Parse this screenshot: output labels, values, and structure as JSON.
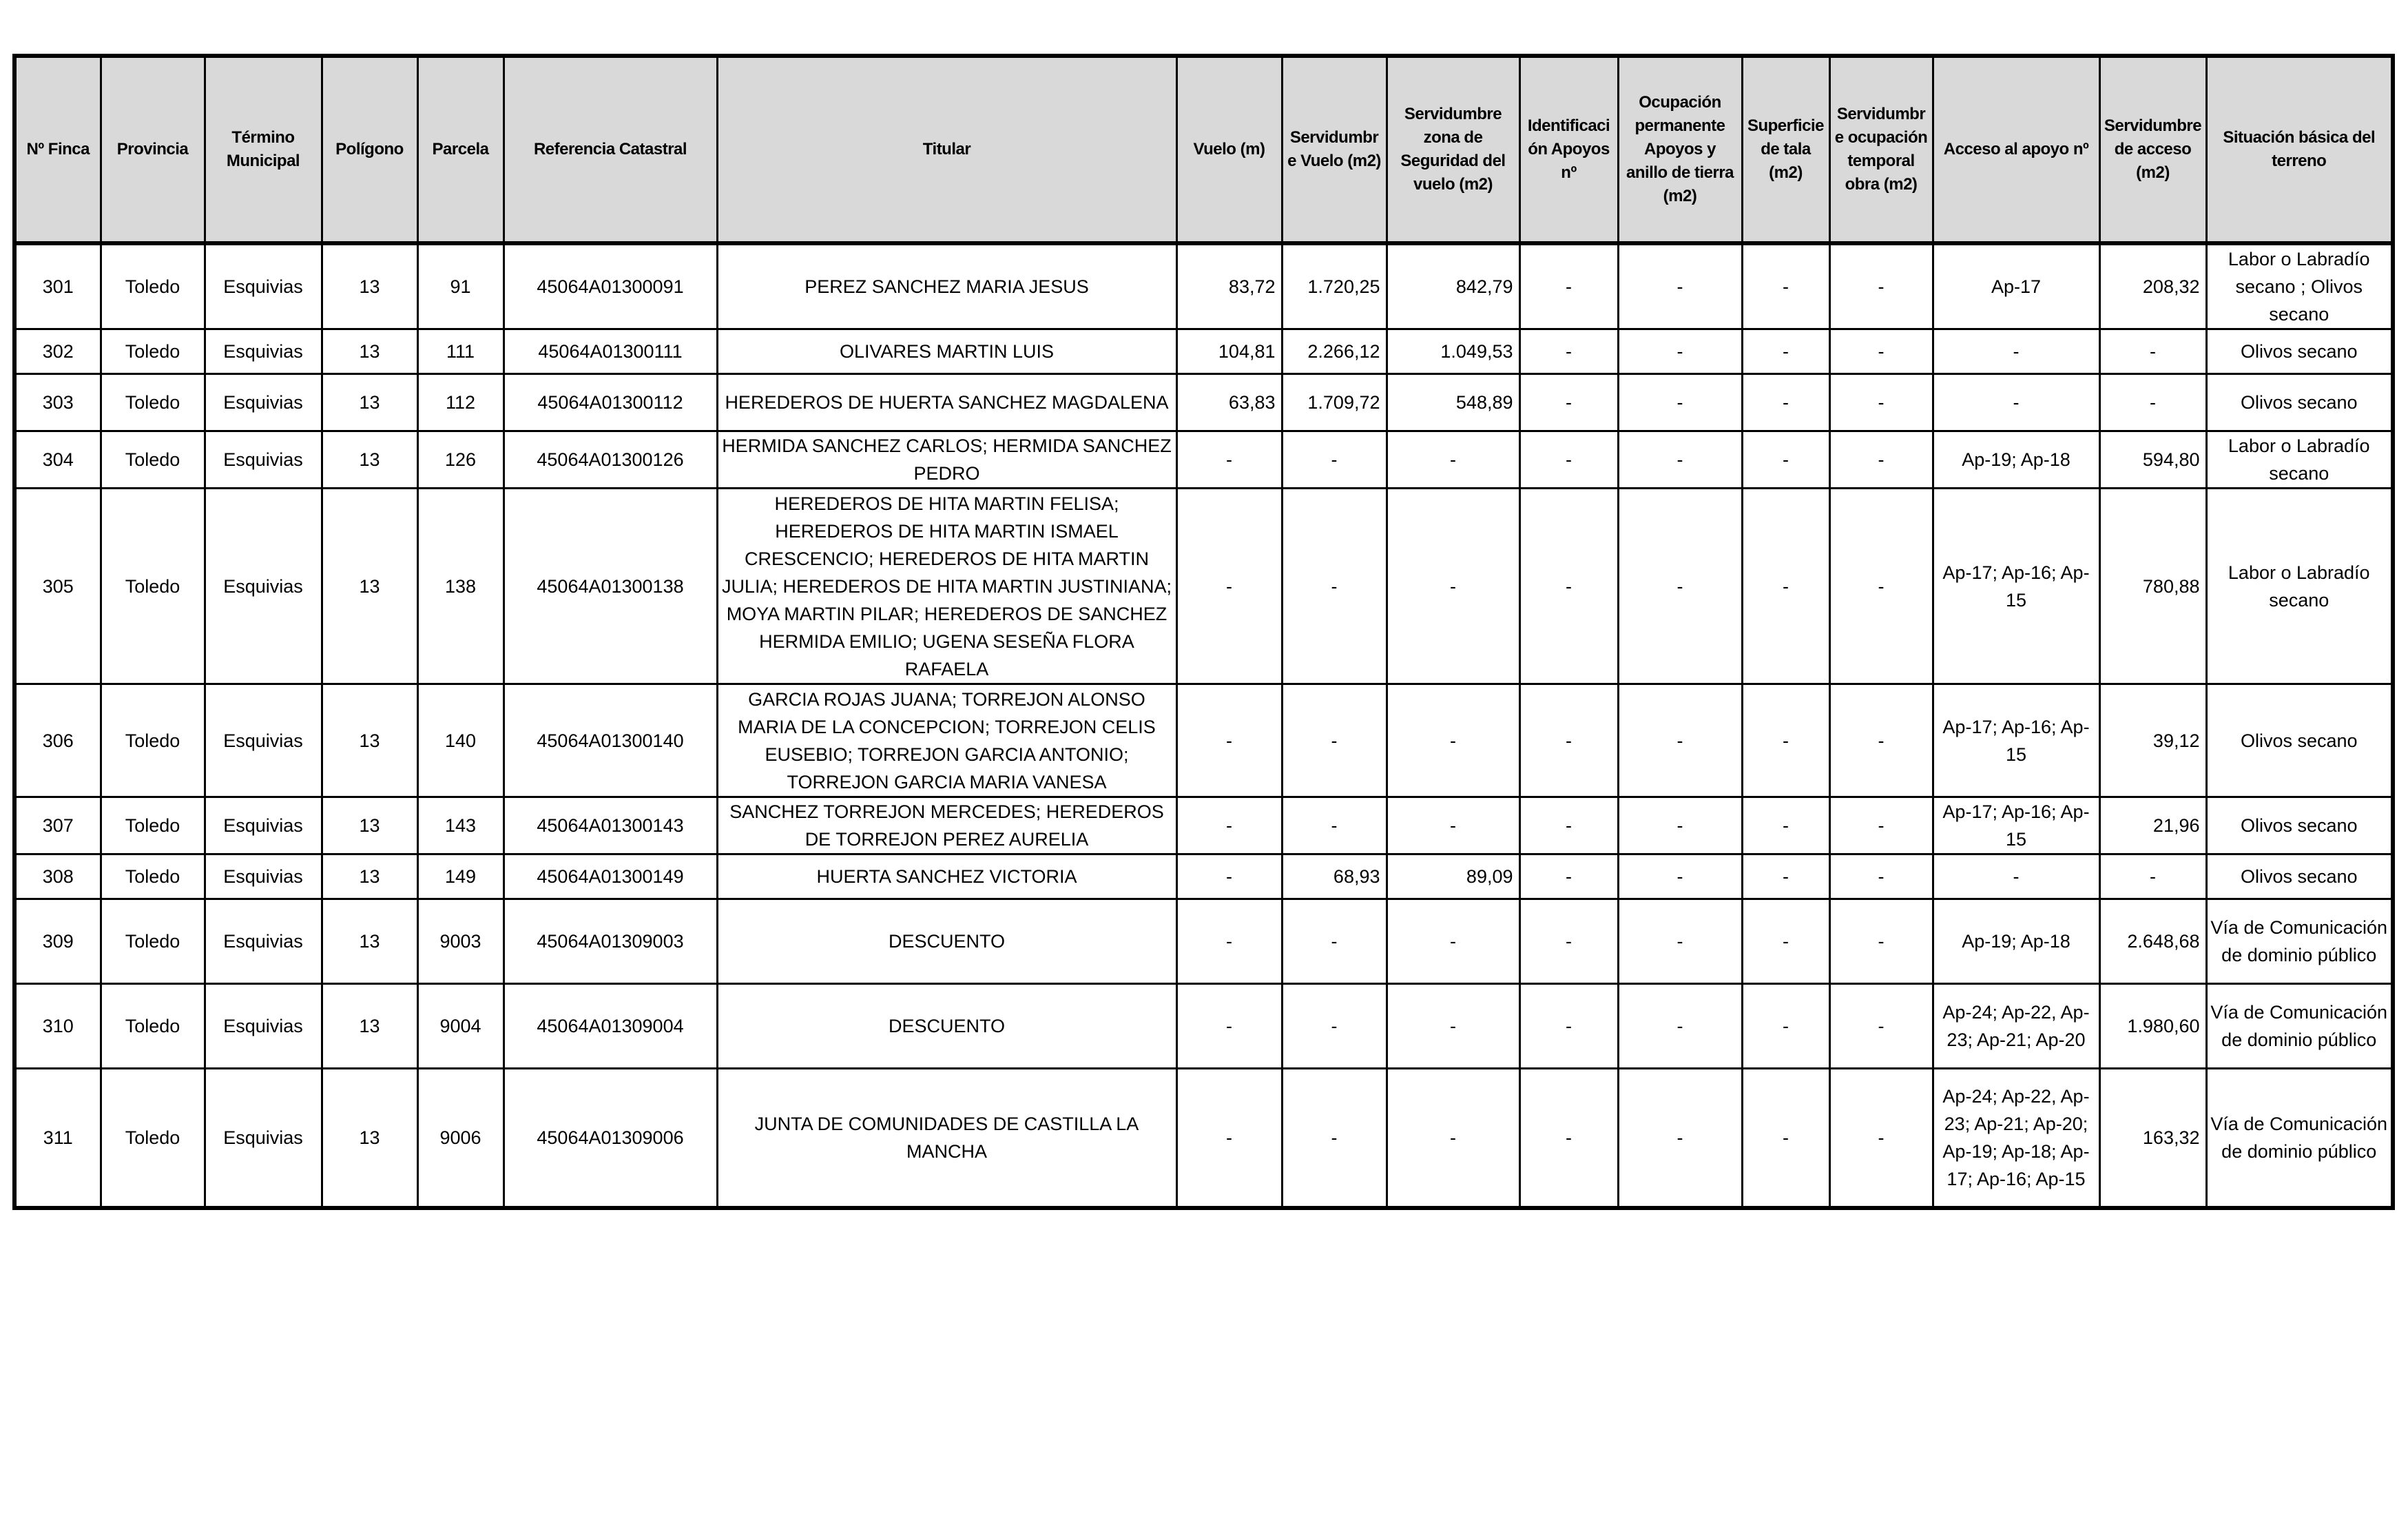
{
  "table": {
    "headers": [
      "Nº Finca",
      "Provincia",
      "Término Municipal",
      "Polígono",
      "Parcela",
      "Referencia Catastral",
      "Titular",
      "Vuelo (m)",
      "Servidumbre Vuelo (m2)",
      "Servidumbre zona de Seguridad del vuelo (m2)",
      "Identificación Apoyos nº",
      "Ocupación permanente Apoyos y anillo de tierra (m2)",
      "Superficie de tala (m2)",
      "Servidumbre ocupación temporal obra (m2)",
      "Acceso al apoyo nº",
      "Servidumbre de acceso (m2)",
      "Situación básica del terreno"
    ],
    "rows": [
      [
        "301",
        "Toledo",
        "Esquivias",
        "13",
        "91",
        "45064A01300091",
        "PEREZ SANCHEZ MARIA JESUS",
        "83,72",
        "1.720,25",
        "842,79",
        "-",
        "-",
        "-",
        "-",
        "Ap-17",
        "208,32",
        "Labor o Labradío secano ; Olivos secano"
      ],
      [
        "302",
        "Toledo",
        "Esquivias",
        "13",
        "111",
        "45064A01300111",
        "OLIVARES MARTIN LUIS",
        "104,81",
        "2.266,12",
        "1.049,53",
        "-",
        "-",
        "-",
        "-",
        "-",
        "-",
        "Olivos secano"
      ],
      [
        "303",
        "Toledo",
        "Esquivias",
        "13",
        "112",
        "45064A01300112",
        "HEREDEROS DE HUERTA SANCHEZ MAGDALENA",
        "63,83",
        "1.709,72",
        "548,89",
        "-",
        "-",
        "-",
        "-",
        "-",
        "-",
        "Olivos secano"
      ],
      [
        "304",
        "Toledo",
        "Esquivias",
        "13",
        "126",
        "45064A01300126",
        "HERMIDA SANCHEZ CARLOS; HERMIDA SANCHEZ PEDRO",
        "-",
        "-",
        "-",
        "-",
        "-",
        "-",
        "-",
        "Ap-19; Ap-18",
        "594,80",
        "Labor o Labradío secano"
      ],
      [
        "305",
        "Toledo",
        "Esquivias",
        "13",
        "138",
        "45064A01300138",
        "HEREDEROS DE HITA MARTIN FELISA; HEREDEROS DE HITA MARTIN ISMAEL CRESCENCIO; HEREDEROS DE HITA MARTIN JULIA; HEREDEROS DE HITA MARTIN JUSTINIANA; MOYA MARTIN PILAR; HEREDEROS DE SANCHEZ HERMIDA EMILIO; UGENA SESEÑA FLORA RAFAELA",
        "-",
        "-",
        "-",
        "-",
        "-",
        "-",
        "-",
        "Ap-17; Ap-16; Ap-15",
        "780,88",
        "Labor o Labradío secano"
      ],
      [
        "306",
        "Toledo",
        "Esquivias",
        "13",
        "140",
        "45064A01300140",
        "GARCIA ROJAS JUANA; TORREJON ALONSO MARIA DE LA CONCEPCION; TORREJON CELIS EUSEBIO; TORREJON GARCIA ANTONIO; TORREJON GARCIA MARIA VANESA",
        "-",
        "-",
        "-",
        "-",
        "-",
        "-",
        "-",
        "Ap-17; Ap-16; Ap-15",
        "39,12",
        "Olivos secano"
      ],
      [
        "307",
        "Toledo",
        "Esquivias",
        "13",
        "143",
        "45064A01300143",
        "SANCHEZ TORREJON MERCEDES; HEREDEROS DE TORREJON PEREZ AURELIA",
        "-",
        "-",
        "-",
        "-",
        "-",
        "-",
        "-",
        "Ap-17; Ap-16; Ap-15",
        "21,96",
        "Olivos secano"
      ],
      [
        "308",
        "Toledo",
        "Esquivias",
        "13",
        "149",
        "45064A01300149",
        "HUERTA SANCHEZ VICTORIA",
        "-",
        "68,93",
        "89,09",
        "-",
        "-",
        "-",
        "-",
        "-",
        "-",
        "Olivos secano"
      ],
      [
        "309",
        "Toledo",
        "Esquivias",
        "13",
        "9003",
        "45064A01309003",
        "DESCUENTO",
        "-",
        "-",
        "-",
        "-",
        "-",
        "-",
        "-",
        "Ap-19; Ap-18",
        "2.648,68",
        "Vía de Comunicación de dominio público"
      ],
      [
        "310",
        "Toledo",
        "Esquivias",
        "13",
        "9004",
        "45064A01309004",
        "DESCUENTO",
        "-",
        "-",
        "-",
        "-",
        "-",
        "-",
        "-",
        "Ap-24; Ap-22, Ap-23; Ap-21; Ap-20",
        "1.980,60",
        "Vía de Comunicación de dominio público"
      ],
      [
        "311",
        "Toledo",
        "Esquivias",
        "13",
        "9006",
        "45064A01309006",
        "JUNTA DE COMUNIDADES DE CASTILLA LA MANCHA",
        "-",
        "-",
        "-",
        "-",
        "-",
        "-",
        "-",
        "Ap-24; Ap-22, Ap-23; Ap-21; Ap-20; Ap-19; Ap-18; Ap-17; Ap-16; Ap-15",
        "163,32",
        "Vía de Comunicación de dominio público"
      ]
    ]
  }
}
